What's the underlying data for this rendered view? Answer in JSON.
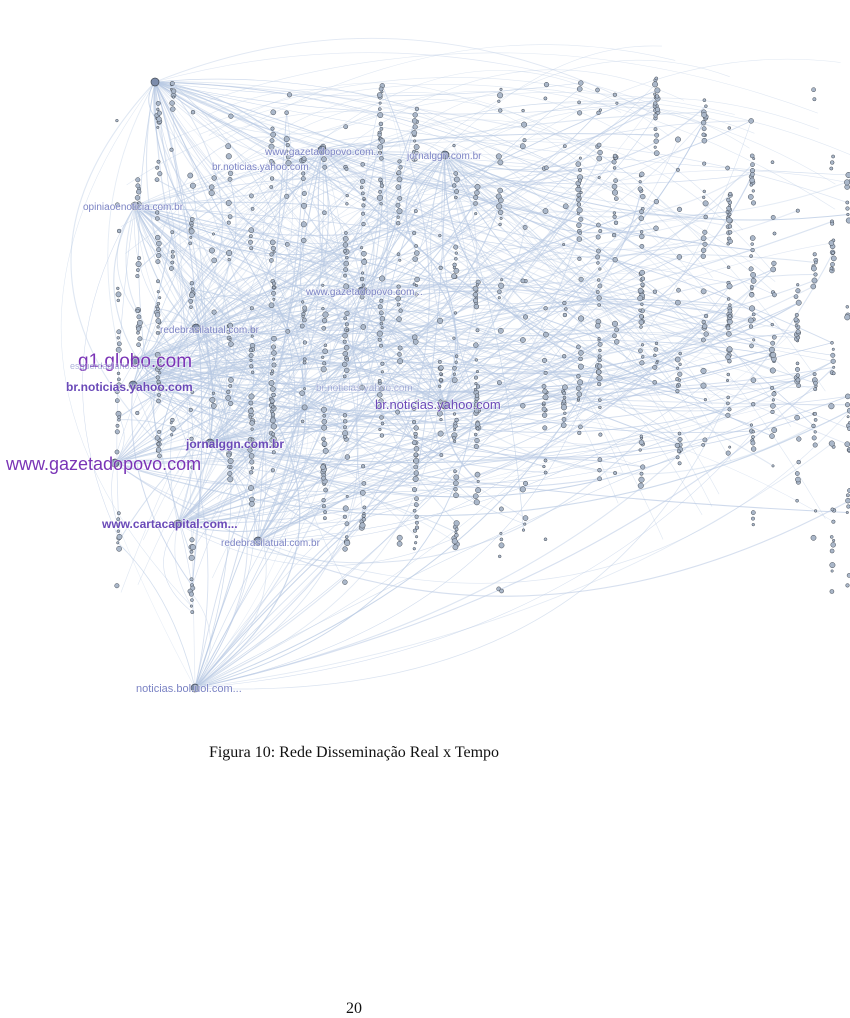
{
  "figure": {
    "caption": "Figura 10: Rede Disseminação Real x Tempo",
    "colors": {
      "edge": "#b8c9e3",
      "node_fill": "#aab7c9",
      "node_stroke": "#444b55",
      "hub_fill": "#7c8cab",
      "label_big": "#7a34b6",
      "label_mid": "#6a4ab8",
      "label_small": "#7b83c4"
    },
    "labels": [
      "www.gazetadopovo.com",
      "g1.globo.com",
      "br.noticias.yahoo.com",
      "br.noticias.yahoo.com",
      "jornalggn.com.br",
      "www.cartacapital.com...",
      "redebrasilatual.com.br",
      "redebrasilatual.com.br",
      "noticias.bol.uol.com...",
      "opiniaoenoticia.com.br",
      "www.gazetadopovo.com...",
      "www.gazetadopovo.com...",
      "jornalggn.com.br",
      "br.noticias.yahoo.com",
      "br.noticias.yahoo.com",
      "esquerdadiario.com"
    ]
  },
  "page": {
    "number": "20"
  }
}
